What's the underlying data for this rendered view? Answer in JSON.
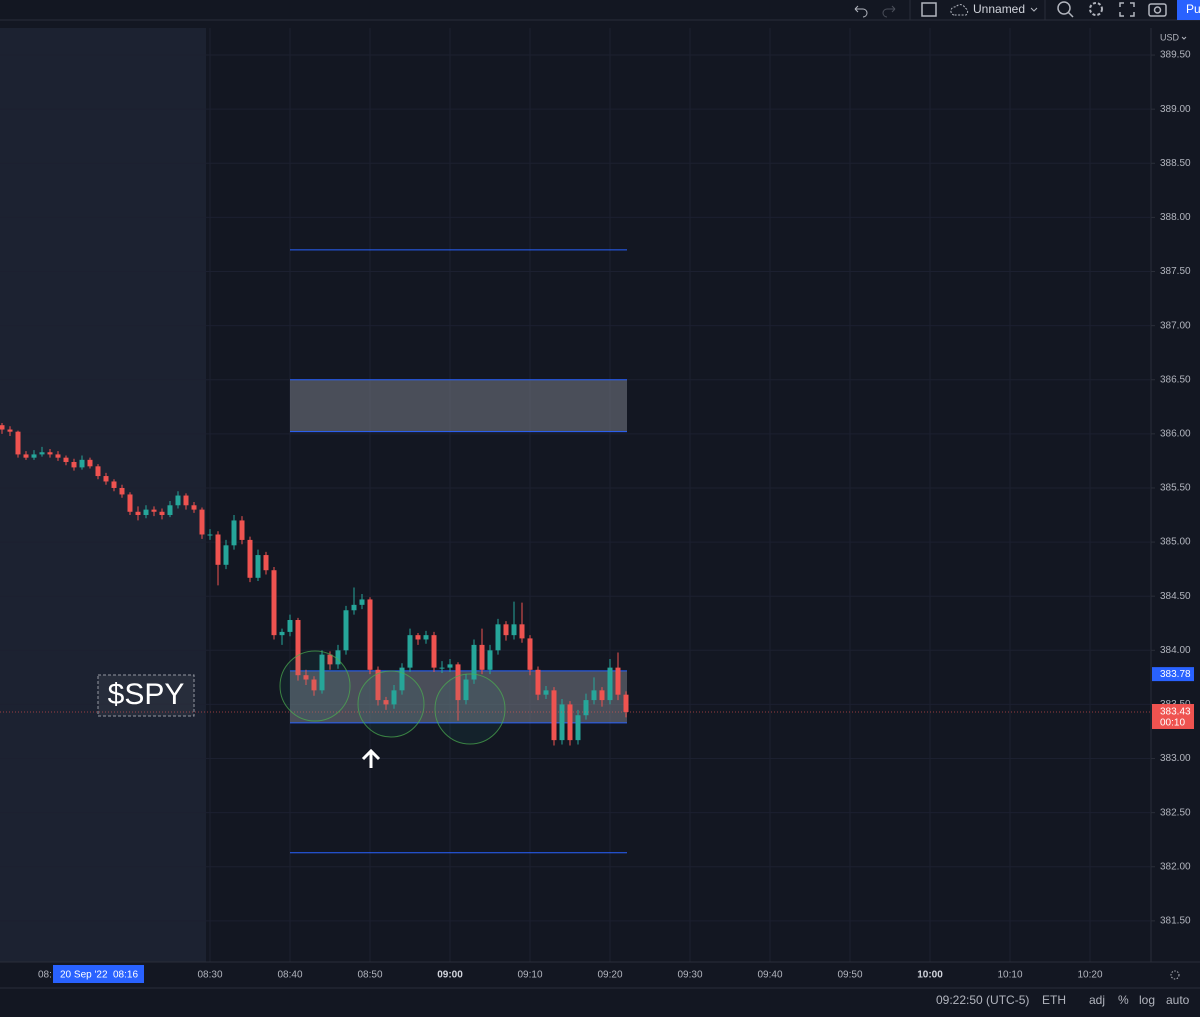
{
  "toolbar": {
    "layout_name": "Unnamed",
    "publish": "Pu"
  },
  "chart_data": {
    "type": "candlestick",
    "symbol": "$SPY",
    "currency": "USD",
    "up_color": "#26a69a",
    "down_color": "#ef5350",
    "open": [
      386.08,
      386.04,
      386.02,
      385.81,
      385.78,
      385.81,
      385.83,
      385.81,
      385.78,
      385.74,
      385.69,
      385.76,
      385.7,
      385.61,
      385.56,
      385.5,
      385.44,
      385.28,
      385.25,
      385.3,
      385.28,
      385.25,
      385.34,
      385.43,
      385.34,
      385.3,
      385.07,
      385.07,
      384.79,
      384.97,
      385.2,
      385.02,
      384.67,
      384.88,
      384.74,
      384.14,
      384.17,
      384.28,
      383.77,
      383.73,
      383.63,
      383.96,
      383.87,
      384.0,
      384.37,
      384.42,
      384.47,
      383.82,
      383.54,
      383.5,
      383.63,
      383.84,
      384.14,
      384.1,
      384.14,
      383.84,
      383.84,
      383.87,
      383.54,
      383.73,
      384.05,
      383.82,
      384.0,
      384.24,
      384.14,
      384.24,
      384.11,
      383.82,
      383.59,
      383.63,
      383.17,
      383.5,
      383.17,
      383.4,
      383.54,
      383.63,
      383.54,
      383.84,
      383.59
    ],
    "high": [
      386.1,
      386.07,
      386.03,
      385.84,
      385.85,
      385.88,
      385.86,
      385.84,
      385.8,
      385.77,
      385.8,
      385.78,
      385.72,
      385.64,
      385.58,
      385.53,
      385.46,
      385.33,
      385.34,
      385.33,
      385.31,
      385.38,
      385.47,
      385.45,
      385.37,
      385.32,
      385.12,
      385.1,
      385.02,
      385.25,
      385.24,
      385.05,
      384.93,
      384.91,
      384.77,
      384.2,
      384.33,
      384.3,
      383.82,
      383.76,
      384.0,
      383.99,
      384.05,
      384.41,
      384.58,
      384.52,
      384.49,
      383.85,
      383.57,
      383.68,
      383.88,
      384.2,
      384.16,
      384.18,
      384.17,
      383.9,
      383.92,
      383.89,
      383.78,
      384.1,
      384.2,
      384.05,
      384.29,
      384.27,
      384.45,
      384.44,
      384.14,
      383.85,
      383.67,
      383.66,
      383.55,
      383.53,
      383.45,
      383.6,
      383.75,
      383.66,
      383.92,
      383.98,
      383.62
    ],
    "low": [
      386.0,
      385.98,
      385.78,
      385.76,
      385.76,
      385.79,
      385.78,
      385.75,
      385.71,
      385.66,
      385.67,
      385.68,
      385.58,
      385.53,
      385.47,
      385.41,
      385.25,
      385.2,
      385.22,
      385.24,
      385.21,
      385.23,
      385.31,
      385.3,
      385.27,
      385.03,
      385.02,
      384.6,
      384.75,
      384.93,
      384.98,
      384.63,
      384.64,
      384.7,
      384.1,
      384.05,
      384.13,
      383.72,
      383.68,
      383.58,
      383.6,
      383.82,
      383.83,
      383.96,
      384.33,
      384.38,
      383.78,
      383.49,
      383.45,
      383.46,
      383.59,
      383.8,
      384.05,
      384.06,
      383.8,
      383.79,
      383.8,
      383.35,
      383.5,
      383.69,
      383.78,
      383.78,
      383.96,
      384.09,
      384.1,
      384.07,
      383.77,
      383.54,
      383.55,
      383.12,
      383.13,
      383.12,
      383.13,
      383.36,
      383.5,
      383.48,
      383.5,
      383.54,
      383.38
    ],
    "close": [
      386.04,
      386.02,
      385.81,
      385.78,
      385.81,
      385.83,
      385.81,
      385.78,
      385.74,
      385.69,
      385.76,
      385.7,
      385.61,
      385.56,
      385.5,
      385.44,
      385.28,
      385.25,
      385.3,
      385.28,
      385.25,
      385.34,
      385.43,
      385.34,
      385.3,
      385.07,
      385.07,
      384.79,
      384.97,
      385.2,
      385.02,
      384.67,
      384.88,
      384.74,
      384.14,
      384.17,
      384.28,
      383.77,
      383.73,
      383.63,
      383.96,
      383.87,
      384.0,
      384.37,
      384.42,
      384.47,
      383.82,
      383.54,
      383.5,
      383.63,
      383.84,
      384.14,
      384.1,
      384.14,
      383.84,
      383.84,
      383.87,
      383.54,
      383.73,
      384.05,
      383.82,
      384.0,
      384.24,
      384.14,
      384.24,
      384.11,
      383.82,
      383.59,
      383.63,
      383.17,
      383.5,
      383.17,
      383.4,
      383.54,
      383.63,
      383.54,
      383.84,
      383.59,
      383.43
    ],
    "ylim": [
      381.12,
      389.75
    ],
    "yticks": [
      {
        "value": 381.5,
        "label": "381.50"
      },
      {
        "value": 382,
        "label": "382.00"
      },
      {
        "value": 382.5,
        "label": "382.50"
      },
      {
        "value": 383,
        "label": "383.00"
      },
      {
        "value": 383.5,
        "label": "383.50"
      },
      {
        "value": 384,
        "label": "384.00"
      },
      {
        "value": 384.5,
        "label": "384.50"
      },
      {
        "value": 385,
        "label": "385.00"
      },
      {
        "value": 385.5,
        "label": "385.50"
      },
      {
        "value": 386,
        "label": "386.00"
      },
      {
        "value": 386.5,
        "label": "386.50"
      },
      {
        "value": 387,
        "label": "387.00"
      },
      {
        "value": 387.5,
        "label": "387.50"
      },
      {
        "value": 388,
        "label": "388.00"
      },
      {
        "value": 388.5,
        "label": "388.50"
      },
      {
        "value": 389,
        "label": "389.00"
      },
      {
        "value": 389.5,
        "label": "389.50"
      }
    ],
    "x_partial_label": "08:",
    "crosshair_date": "20 Sep '22",
    "crosshair_time": "08:16",
    "xticks": [
      "08:30",
      "08:40",
      "08:50",
      "09:00",
      "09:10",
      "09:20",
      "09:30",
      "09:40",
      "09:50",
      "10:00",
      "10:10",
      "10:20"
    ],
    "levels": [
      387.7,
      382.13
    ],
    "zones": [
      [
        386.02,
        386.5
      ],
      [
        383.33,
        383.81
      ]
    ],
    "marker_price": 383.78,
    "last_price": {
      "value": 383.43,
      "label": "383.43"
    },
    "countdown": "00:10"
  },
  "status_bar": {
    "time": "09:22:50 (UTC-5)",
    "session": "ETH",
    "buttons": [
      "adj",
      "%",
      "log",
      "auto"
    ]
  }
}
